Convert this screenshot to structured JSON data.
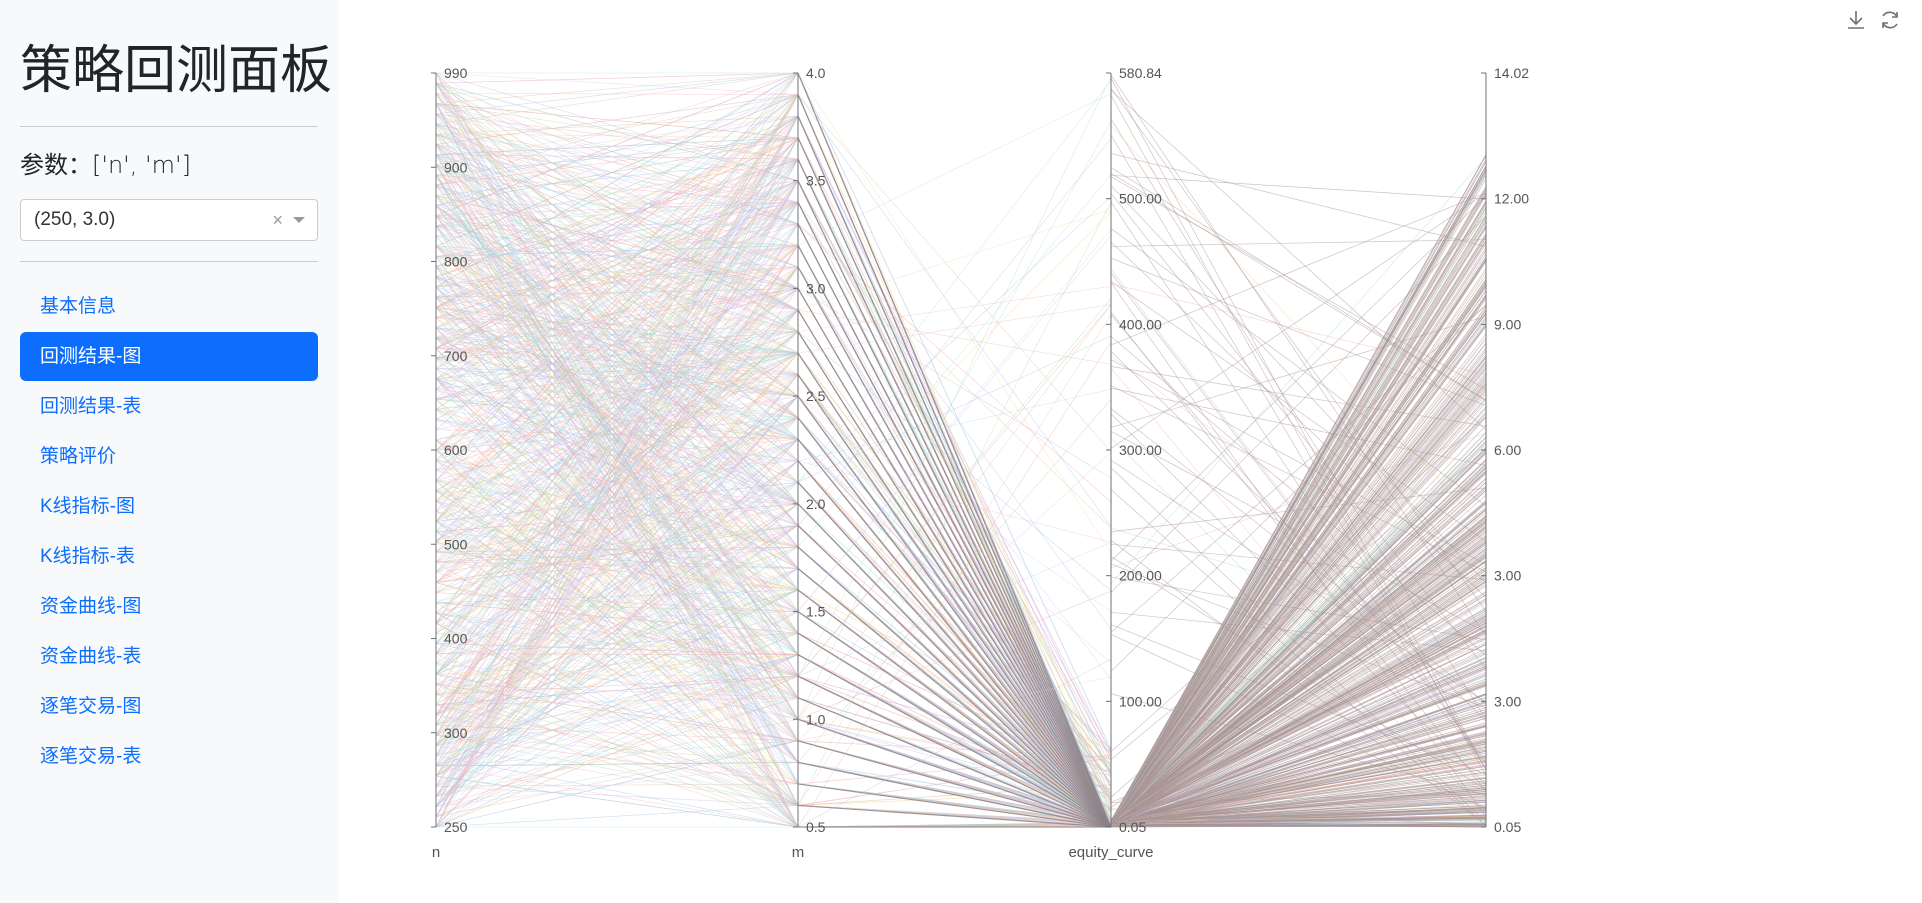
{
  "sidebar": {
    "title": "策略回测面板",
    "params_label": "参数：['n', 'm']",
    "select": {
      "value": "(250, 3.0)",
      "clear": "×"
    },
    "items": [
      {
        "label": "基本信息",
        "active": false
      },
      {
        "label": "回测结果-图",
        "active": true
      },
      {
        "label": "回测结果-表",
        "active": false
      },
      {
        "label": "策略评价",
        "active": false
      },
      {
        "label": "K线指标-图",
        "active": false
      },
      {
        "label": "K线指标-表",
        "active": false
      },
      {
        "label": "资金曲线-图",
        "active": false
      },
      {
        "label": "资金曲线-表",
        "active": false
      },
      {
        "label": "逐笔交易-图",
        "active": false
      },
      {
        "label": "逐笔交易-表",
        "active": false
      }
    ]
  },
  "toolbox": {
    "icons": [
      "download-icon",
      "refresh-icon"
    ]
  },
  "colors": {
    "accent": "#0d6efd",
    "axis": "#6e7079",
    "line_palette": [
      "#f4a6a6",
      "#9ec5e8",
      "#b7d7a8",
      "#e6c8f0",
      "#f9d79b",
      "#a8e0df",
      "#c9b6e4",
      "#f2b8c6",
      "#bcd4ec",
      "#d8c3a5"
    ],
    "dense_line": "#a89494"
  },
  "chart_data": {
    "type": "parallel",
    "axes": [
      {
        "name": "n",
        "min": 250,
        "max": 990,
        "ticks": [
          "990",
          "900",
          "800",
          "700",
          "600",
          "500",
          "400",
          "300",
          "250"
        ]
      },
      {
        "name": "m",
        "min": 0.5,
        "max": 4.0,
        "ticks": [
          "4.0",
          "3.5",
          "3.0",
          "2.5",
          "2.0",
          "1.5",
          "1.0",
          "0.5"
        ]
      },
      {
        "name": "equity_curve",
        "min": 0.05,
        "max": 580.84,
        "ticks": [
          "580.84",
          "500.00",
          "400.00",
          "300.00",
          "200.00",
          "100.00",
          "0.05"
        ]
      },
      {
        "name": "",
        "min": 0.05,
        "max": 14.02,
        "ticks": [
          "14.02",
          "12.00",
          "9.00",
          "6.00",
          "3.00",
          "3.00",
          "0.05"
        ]
      }
    ],
    "n_values": {
      "start": 250,
      "end": 990,
      "step": 10
    },
    "m_values": {
      "start": 0.5,
      "end": 4.0,
      "step": 0.1
    }
  }
}
